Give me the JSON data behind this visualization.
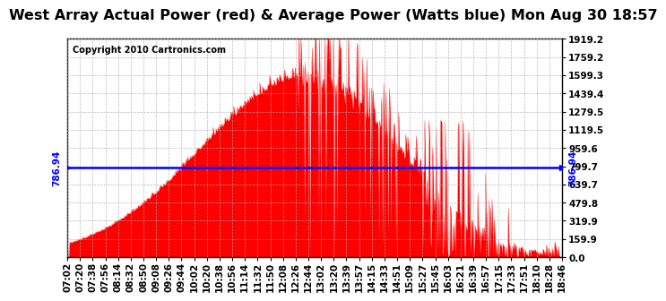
{
  "title": "West Array Actual Power (red) & Average Power (Watts blue) Mon Aug 30 18:57",
  "copyright": "Copyright 2010 Cartronics.com",
  "avg_power": 786.94,
  "ymin": 0.0,
  "ymax": 1919.2,
  "yticks": [
    0.0,
    159.9,
    319.9,
    479.8,
    639.7,
    799.7,
    959.6,
    1119.5,
    1279.5,
    1439.4,
    1599.3,
    1759.2,
    1919.2
  ],
  "ytick_labels": [
    "0.0",
    "159.9",
    "319.9",
    "479.8",
    "639.7",
    "799.7",
    "959.6",
    "1119.5",
    "1279.5",
    "1439.4",
    "1599.3",
    "1759.2",
    "1919.2"
  ],
  "xtick_labels": [
    "07:02",
    "07:20",
    "07:38",
    "07:56",
    "08:14",
    "08:32",
    "08:50",
    "09:08",
    "09:26",
    "09:44",
    "10:02",
    "10:20",
    "10:38",
    "10:56",
    "11:14",
    "11:32",
    "11:50",
    "12:08",
    "12:26",
    "12:44",
    "13:02",
    "13:20",
    "13:39",
    "13:57",
    "14:15",
    "14:33",
    "14:51",
    "15:09",
    "15:27",
    "15:45",
    "16:03",
    "16:21",
    "16:39",
    "16:57",
    "17:15",
    "17:33",
    "17:51",
    "18:10",
    "18:28",
    "18:46"
  ],
  "fill_color": "#ff0000",
  "line_color": "#0000ff",
  "bg_color": "#ffffff",
  "grid_color": "#aaaaaa",
  "title_fontsize": 11.5,
  "tick_fontsize": 7.5,
  "avg_label_fontsize": 7.5,
  "copyright_fontsize": 7
}
